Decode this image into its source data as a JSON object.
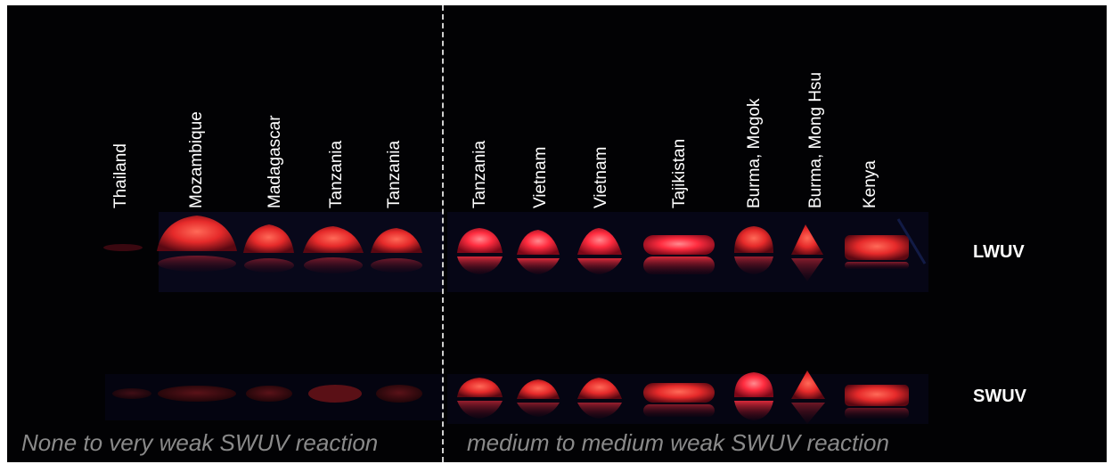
{
  "photo": {
    "origins": [
      "Thailand",
      "Mozambique",
      "Madagascar",
      "Tanzania",
      "Tanzania",
      "Tanzania",
      "Vietnam",
      "Vietnam",
      "Tajikistan",
      "Burma, Mogok",
      "Burma, Mong Hsu",
      "Kenya"
    ],
    "rows": {
      "lw": "LWUV",
      "sw": "SWUV"
    },
    "captions": {
      "left": "None to very weak SWUV reaction",
      "right": "medium to medium weak SWUV reaction"
    }
  }
}
